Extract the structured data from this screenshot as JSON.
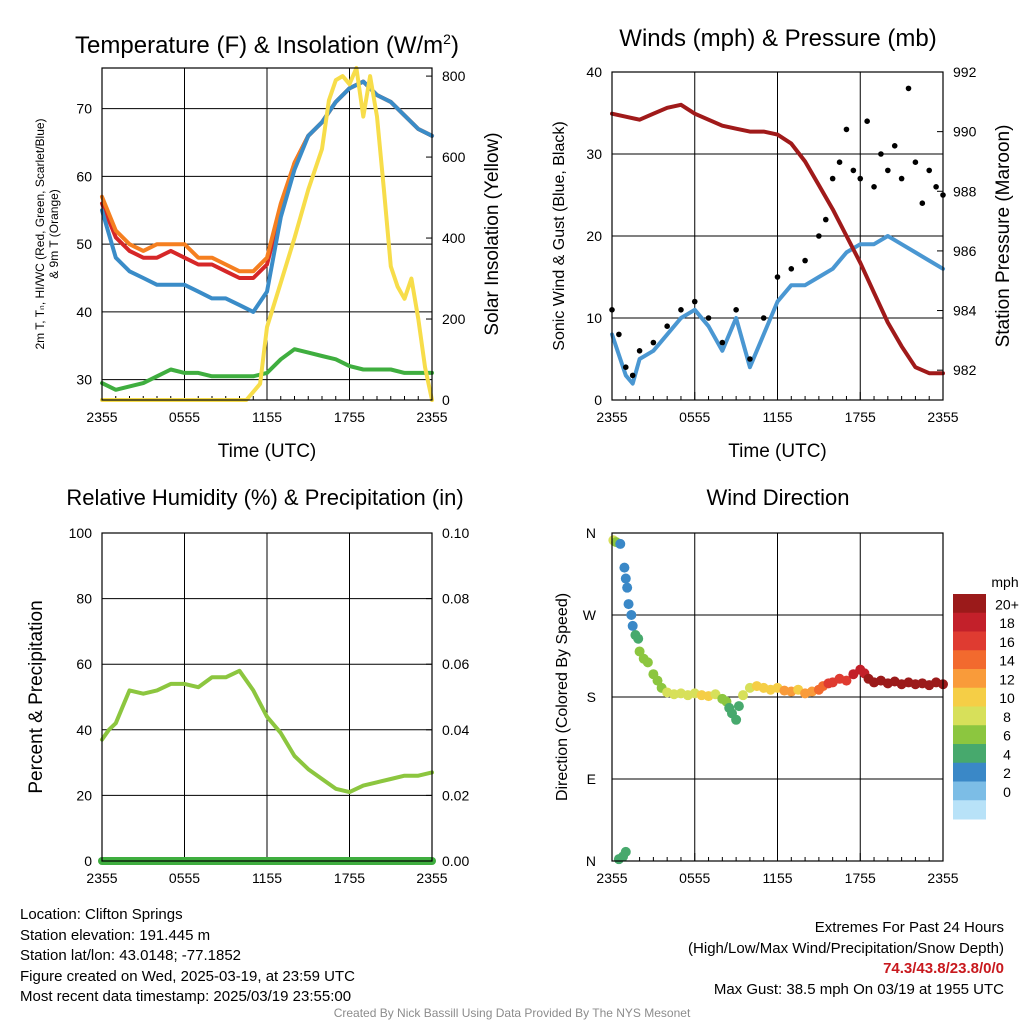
{
  "chart_data": [
    {
      "type": "line",
      "title": "Temperature (F) & Insolation (W/m²)",
      "xlabel": "Time (UTC)",
      "ylabel": "2m T, Td, HI/WC (Red, Green, Scarlet/Blue) & 9m T (Orange)",
      "ylabel_lines": [
        "2m T, Tₙ, HI/WC (Red, Green, Scarlet/Blue)",
        "& 9m T (Orange)"
      ],
      "ylabel_right": "Solar Insolation (Yellow)",
      "x_ticks": [
        "2355",
        "0555",
        "1155",
        "1755",
        "2355"
      ],
      "ylim": [
        27,
        76
      ],
      "y_ticks": [
        30,
        40,
        50,
        60,
        70
      ],
      "ylim_right": [
        0,
        820
      ],
      "y_ticks_right": [
        0,
        200,
        400,
        600,
        800
      ],
      "grid": true,
      "series": [
        {
          "color": "#d62728",
          "axis": "left",
          "x": [
            0,
            1,
            2,
            3,
            4,
            5,
            6,
            7,
            8,
            9,
            10,
            11,
            12,
            13,
            14,
            15,
            16,
            17,
            18,
            19,
            20,
            21,
            22,
            23,
            24
          ],
          "values": [
            56,
            51,
            49,
            48,
            48,
            49,
            48,
            47,
            47,
            46,
            45,
            45,
            47,
            55,
            62,
            66,
            68,
            71,
            73,
            74,
            72,
            71,
            69,
            67,
            66
          ]
        },
        {
          "color": "#f57f20",
          "axis": "left",
          "x": [
            0,
            1,
            2,
            3,
            4,
            5,
            6,
            7,
            8,
            9,
            10,
            11,
            12,
            13,
            14,
            15,
            16,
            17,
            18,
            19,
            20,
            21,
            22,
            23,
            24
          ],
          "values": [
            57,
            52,
            50,
            49,
            50,
            50,
            50,
            48,
            48,
            47,
            46,
            46,
            48,
            56,
            62,
            66,
            68,
            71,
            73,
            74,
            72,
            71,
            69,
            67,
            66
          ]
        },
        {
          "color": "#3a8cc8",
          "axis": "left",
          "x": [
            0,
            1,
            2,
            3,
            4,
            5,
            6,
            7,
            8,
            9,
            10,
            11,
            12,
            13,
            14,
            15,
            16,
            17,
            18,
            19,
            20,
            21,
            22,
            23,
            24
          ],
          "values": [
            55,
            48,
            46,
            45,
            44,
            44,
            44,
            43,
            42,
            42,
            41,
            40,
            43,
            54,
            61,
            66,
            68,
            71,
            73,
            74,
            72,
            71,
            69,
            67,
            66
          ]
        },
        {
          "color": "#3fae3f",
          "axis": "left",
          "x": [
            0,
            1,
            2,
            3,
            4,
            5,
            6,
            7,
            8,
            9,
            10,
            11,
            12,
            13,
            14,
            15,
            16,
            17,
            18,
            19,
            20,
            21,
            22,
            23,
            24
          ],
          "values": [
            29.5,
            28.5,
            29,
            29.5,
            30.5,
            31.5,
            31,
            31,
            30.5,
            30.5,
            30.5,
            30.5,
            31,
            33,
            34.5,
            34,
            33.5,
            33,
            32,
            31.5,
            31.5,
            31.5,
            31,
            31,
            31
          ]
        },
        {
          "color": "#f7dd4a",
          "axis": "right",
          "x": [
            0,
            10.5,
            11.5,
            12,
            13,
            14,
            15,
            16,
            16.5,
            17,
            17.5,
            18,
            18.5,
            19,
            19.5,
            20,
            20.5,
            21,
            21.5,
            22,
            22.5,
            23,
            23.5,
            24
          ],
          "values": [
            0,
            0,
            40,
            180,
            290,
            400,
            520,
            620,
            740,
            790,
            800,
            780,
            820,
            700,
            800,
            700,
            520,
            330,
            280,
            250,
            300,
            200,
            80,
            0
          ]
        }
      ]
    },
    {
      "type": "line",
      "title": "Winds (mph) & Pressure (mb)",
      "xlabel": "Time (UTC)",
      "ylabel": "Sonic Wind & Gust (Blue, Black)",
      "ylabel_right": "Station Pressure (Maroon)",
      "x_ticks": [
        "2355",
        "0555",
        "1155",
        "1755",
        "2355"
      ],
      "ylim": [
        0,
        40
      ],
      "y_ticks": [
        0,
        10,
        20,
        30,
        40
      ],
      "ylim_right": [
        981,
        992
      ],
      "y_ticks_right": [
        982,
        984,
        986,
        988,
        990,
        992
      ],
      "grid": true,
      "series": [
        {
          "color": "#4a97d2",
          "axis": "left",
          "x": [
            0,
            1,
            1.5,
            2,
            3,
            4,
            5,
            6,
            7,
            8,
            9,
            10,
            11,
            12,
            13,
            14,
            15,
            16,
            17,
            18,
            19,
            20,
            21,
            22,
            23,
            24
          ],
          "values": [
            8,
            3,
            2,
            5,
            6,
            8,
            10,
            11,
            9,
            6,
            10,
            4,
            8,
            12,
            14,
            14,
            15,
            16,
            18,
            19,
            19,
            20,
            19,
            18,
            17,
            16
          ]
        },
        {
          "type": "scatter",
          "color": "#000000",
          "axis": "left",
          "x": [
            0,
            0.5,
            1,
            1.5,
            2,
            3,
            4,
            5,
            6,
            7,
            8,
            9,
            10,
            11,
            12,
            13,
            14,
            15,
            15.5,
            16,
            16.5,
            17,
            17.5,
            18,
            18.5,
            19,
            19.5,
            20,
            20.5,
            21,
            21.5,
            22,
            22.5,
            23,
            23.5,
            24
          ],
          "values": [
            11,
            8,
            4,
            3,
            6,
            7,
            9,
            11,
            12,
            10,
            7,
            11,
            5,
            10,
            15,
            16,
            17,
            20,
            22,
            27,
            29,
            33,
            28,
            27,
            34,
            26,
            30,
            28,
            31,
            27,
            38,
            29,
            24,
            28,
            26,
            25
          ]
        },
        {
          "color": "#a01a1a",
          "axis": "right",
          "x": [
            0,
            1,
            2,
            3,
            4,
            5,
            6,
            7,
            8,
            9,
            10,
            11,
            12,
            13,
            14,
            15,
            16,
            17,
            18,
            19,
            20,
            21,
            22,
            23,
            24
          ],
          "values": [
            990.6,
            990.5,
            990.4,
            990.6,
            990.8,
            990.9,
            990.6,
            990.4,
            990.2,
            990.1,
            990.0,
            990.0,
            989.9,
            989.6,
            989.0,
            988.2,
            987.4,
            986.5,
            985.6,
            984.6,
            983.6,
            982.8,
            982.1,
            981.9,
            981.9
          ]
        }
      ]
    },
    {
      "type": "line",
      "title": "Relative Humidity (%) & Precipitation (in)",
      "ylabel": "Percent & Precipitation",
      "x_ticks": [
        "2355",
        "0555",
        "1155",
        "1755",
        "2355"
      ],
      "ylim": [
        0,
        100
      ],
      "y_ticks": [
        0,
        20,
        40,
        60,
        80,
        100
      ],
      "ylim_right": [
        0,
        0.1
      ],
      "y_ticks_right": [
        "0.00",
        "0.02",
        "0.04",
        "0.06",
        "0.08",
        "0.10"
      ],
      "grid": true,
      "series": [
        {
          "color": "#8cc63f",
          "axis": "left",
          "x": [
            0,
            0.5,
            1,
            1.5,
            2,
            3,
            4,
            5,
            6,
            7,
            8,
            9,
            10,
            11,
            12,
            13,
            14,
            15,
            16,
            17,
            18,
            19,
            20,
            21,
            22,
            23,
            24
          ],
          "values": [
            37,
            40,
            42,
            47,
            52,
            51,
            52,
            54,
            54,
            53,
            56,
            56,
            58,
            52,
            44,
            39,
            32,
            28,
            25,
            22,
            21,
            23,
            24,
            25,
            26,
            26,
            27
          ]
        },
        {
          "color": "#3fae3f",
          "axis": "right",
          "x": [
            0,
            24
          ],
          "values": [
            0,
            0
          ]
        }
      ]
    },
    {
      "type": "scatter",
      "title": "Wind Direction",
      "ylabel": "Direction (Colored By Speed)",
      "x_ticks": [
        "2355",
        "0555",
        "1155",
        "1755",
        "2355"
      ],
      "y_ticks": [
        "N",
        "E",
        "S",
        "W",
        "N"
      ],
      "ylim": [
        0,
        360
      ],
      "grid": true,
      "colorbar": {
        "unit": "mph",
        "labels": [
          "20+",
          "18",
          "16",
          "14",
          "12",
          "10",
          "8",
          "6",
          "4",
          "2",
          "0"
        ],
        "colors": [
          "#9b1a1a",
          "#c3202a",
          "#df3b31",
          "#f26a2e",
          "#f99b3a",
          "#f5ce46",
          "#d7e05a",
          "#8cc63f",
          "#47a96d",
          "#3a88c7",
          "#7cbde6",
          "#b8e2f8"
        ]
      },
      "points": [
        {
          "x": 0.1,
          "y": 352,
          "s": 8
        },
        {
          "x": 0.3,
          "y": 350,
          "s": 7
        },
        {
          "x": 0.6,
          "y": 348,
          "s": 2
        },
        {
          "x": 0.8,
          "y": 5,
          "s": 4
        },
        {
          "x": 1.0,
          "y": 10,
          "s": 4
        },
        {
          "x": 0.5,
          "y": 2,
          "s": 4
        },
        {
          "x": 0.9,
          "y": 322,
          "s": 2
        },
        {
          "x": 1.0,
          "y": 310,
          "s": 2
        },
        {
          "x": 1.1,
          "y": 300,
          "s": 2
        },
        {
          "x": 1.2,
          "y": 282,
          "s": 3
        },
        {
          "x": 1.4,
          "y": 270,
          "s": 3
        },
        {
          "x": 1.5,
          "y": 258,
          "s": 2
        },
        {
          "x": 1.7,
          "y": 248,
          "s": 4
        },
        {
          "x": 1.9,
          "y": 244,
          "s": 4
        },
        {
          "x": 2.0,
          "y": 230,
          "s": 6
        },
        {
          "x": 2.3,
          "y": 222,
          "s": 6
        },
        {
          "x": 2.6,
          "y": 218,
          "s": 7
        },
        {
          "x": 3.0,
          "y": 205,
          "s": 6
        },
        {
          "x": 3.3,
          "y": 198,
          "s": 6
        },
        {
          "x": 3.6,
          "y": 190,
          "s": 7
        },
        {
          "x": 4.0,
          "y": 185,
          "s": 8
        },
        {
          "x": 4.5,
          "y": 183,
          "s": 8
        },
        {
          "x": 5.0,
          "y": 184,
          "s": 8
        },
        {
          "x": 5.5,
          "y": 182,
          "s": 9
        },
        {
          "x": 6.0,
          "y": 184,
          "s": 9
        },
        {
          "x": 6.5,
          "y": 182,
          "s": 10
        },
        {
          "x": 7.0,
          "y": 181,
          "s": 10
        },
        {
          "x": 7.5,
          "y": 183,
          "s": 9
        },
        {
          "x": 8.0,
          "y": 178,
          "s": 6
        },
        {
          "x": 8.3,
          "y": 175,
          "s": 6
        },
        {
          "x": 8.5,
          "y": 168,
          "s": 5
        },
        {
          "x": 8.7,
          "y": 162,
          "s": 4
        },
        {
          "x": 9.0,
          "y": 155,
          "s": 4
        },
        {
          "x": 9.2,
          "y": 170,
          "s": 5
        },
        {
          "x": 9.5,
          "y": 182,
          "s": 8
        },
        {
          "x": 10.0,
          "y": 190,
          "s": 9
        },
        {
          "x": 10.5,
          "y": 192,
          "s": 10
        },
        {
          "x": 11.0,
          "y": 190,
          "s": 10
        },
        {
          "x": 11.5,
          "y": 188,
          "s": 11
        },
        {
          "x": 12.0,
          "y": 190,
          "s": 11
        },
        {
          "x": 12.5,
          "y": 187,
          "s": 12
        },
        {
          "x": 13.0,
          "y": 186,
          "s": 12
        },
        {
          "x": 13.5,
          "y": 188,
          "s": 11
        },
        {
          "x": 14.0,
          "y": 184,
          "s": 12
        },
        {
          "x": 14.5,
          "y": 186,
          "s": 13
        },
        {
          "x": 15.0,
          "y": 188,
          "s": 14
        },
        {
          "x": 15.3,
          "y": 192,
          "s": 15
        },
        {
          "x": 15.7,
          "y": 195,
          "s": 16
        },
        {
          "x": 16.0,
          "y": 196,
          "s": 16
        },
        {
          "x": 16.5,
          "y": 200,
          "s": 17
        },
        {
          "x": 17.0,
          "y": 198,
          "s": 17
        },
        {
          "x": 17.5,
          "y": 205,
          "s": 18
        },
        {
          "x": 18.0,
          "y": 210,
          "s": 19
        },
        {
          "x": 18.3,
          "y": 206,
          "s": 19
        },
        {
          "x": 18.6,
          "y": 200,
          "s": 20
        },
        {
          "x": 19.0,
          "y": 196,
          "s": 20
        },
        {
          "x": 19.5,
          "y": 198,
          "s": 20
        },
        {
          "x": 20.0,
          "y": 195,
          "s": 20
        },
        {
          "x": 20.5,
          "y": 197,
          "s": 20
        },
        {
          "x": 21.0,
          "y": 194,
          "s": 20
        },
        {
          "x": 21.5,
          "y": 196,
          "s": 20
        },
        {
          "x": 22.0,
          "y": 194,
          "s": 20
        },
        {
          "x": 22.5,
          "y": 195,
          "s": 20
        },
        {
          "x": 23.0,
          "y": 193,
          "s": 20
        },
        {
          "x": 23.5,
          "y": 196,
          "s": 20
        },
        {
          "x": 24.0,
          "y": 194,
          "s": 20
        }
      ]
    }
  ],
  "info": {
    "location": "Location: Clifton Springs",
    "elevation": "Station elevation: 191.445 m",
    "latlon": "Station lat/lon: 43.0148; -77.1852",
    "created": "Figure created on Wed, 2025-03-19, at 23:59 UTC",
    "recent": "Most recent data timestamp: 2025/03/19 23:55:00"
  },
  "extremes": {
    "title": "Extremes For Past 24 Hours",
    "subtitle": "(High/Low/Max Wind/Precipitation/Snow Depth)",
    "values": "74.3/43.8/23.8/0/0",
    "gust": "Max Gust: 38.5 mph On 03/19 at 1955 UTC"
  },
  "credit": "Created By Nick Bassill Using Data Provided By The NYS Mesonet"
}
